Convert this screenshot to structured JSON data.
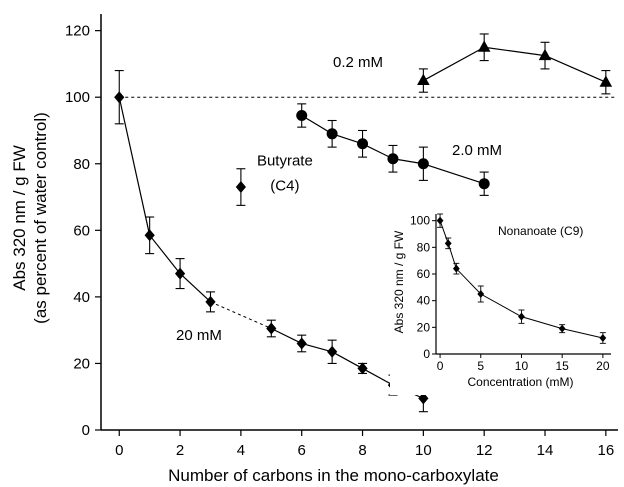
{
  "chart_data": [
    {
      "type": "line",
      "xlabel": "Number of carbons in the mono-carboxylate",
      "ylabel": "Abs 320 nm / g FW",
      "ylabel2": "(as percent of water control)",
      "xlim": [
        -0.6,
        16.4
      ],
      "ylim": [
        0,
        125
      ],
      "x_ticks": [
        0,
        2,
        4,
        6,
        8,
        10,
        12,
        14,
        16
      ],
      "y_ticks": [
        0,
        20,
        40,
        60,
        80,
        100,
        120
      ],
      "reference_line": 100,
      "grid": false,
      "series": [
        {
          "label": "20 mM",
          "marker": "diamond",
          "x": [
            0,
            1,
            2,
            3,
            4,
            5,
            6,
            7,
            8,
            9,
            10
          ],
          "y": [
            100,
            58.5,
            47,
            38.5,
            73,
            30.5,
            26,
            23.5,
            18.5,
            13.5,
            9.5
          ],
          "err": [
            8,
            5.5,
            4.5,
            3,
            5.5,
            2.5,
            2.5,
            3.5,
            1.5,
            3,
            4
          ],
          "dashed_segments": [
            [
              3,
              5
            ]
          ]
        },
        {
          "label": "2.0 mM",
          "marker": "circle",
          "x": [
            6,
            7,
            8,
            9,
            10,
            12
          ],
          "y": [
            94.5,
            89,
            86,
            81.5,
            80,
            74
          ],
          "err": [
            3.5,
            4,
            4,
            4,
            5,
            3.5
          ]
        },
        {
          "label": "0.2 mM",
          "marker": "triangle",
          "x": [
            10,
            12,
            14,
            16
          ],
          "y": [
            105,
            115,
            112.5,
            104.5
          ],
          "err": [
            3.5,
            4,
            4,
            3.5
          ]
        }
      ],
      "annotations": [
        {
          "text": "Butyrate",
          "x": 4,
          "y": 81
        },
        {
          "text": "(C4)",
          "x": 4,
          "y": 73.5
        }
      ]
    },
    {
      "type": "line",
      "title": "Nonanoate (C9)",
      "xlabel": "Concentration (mM)",
      "ylabel": "Abs 320 nm / g FW",
      "xlim": [
        -0.5,
        21
      ],
      "ylim": [
        0,
        105
      ],
      "x_ticks": [
        0,
        5,
        10,
        15,
        20
      ],
      "y_ticks": [
        0,
        20,
        40,
        60,
        80,
        100
      ],
      "series": [
        {
          "marker": "diamond",
          "x": [
            0,
            1,
            2,
            5,
            10,
            15,
            20
          ],
          "y": [
            100,
            83,
            64,
            45,
            28,
            19,
            12
          ],
          "err": [
            5,
            4,
            4,
            6,
            5,
            3,
            4
          ]
        }
      ]
    }
  ]
}
